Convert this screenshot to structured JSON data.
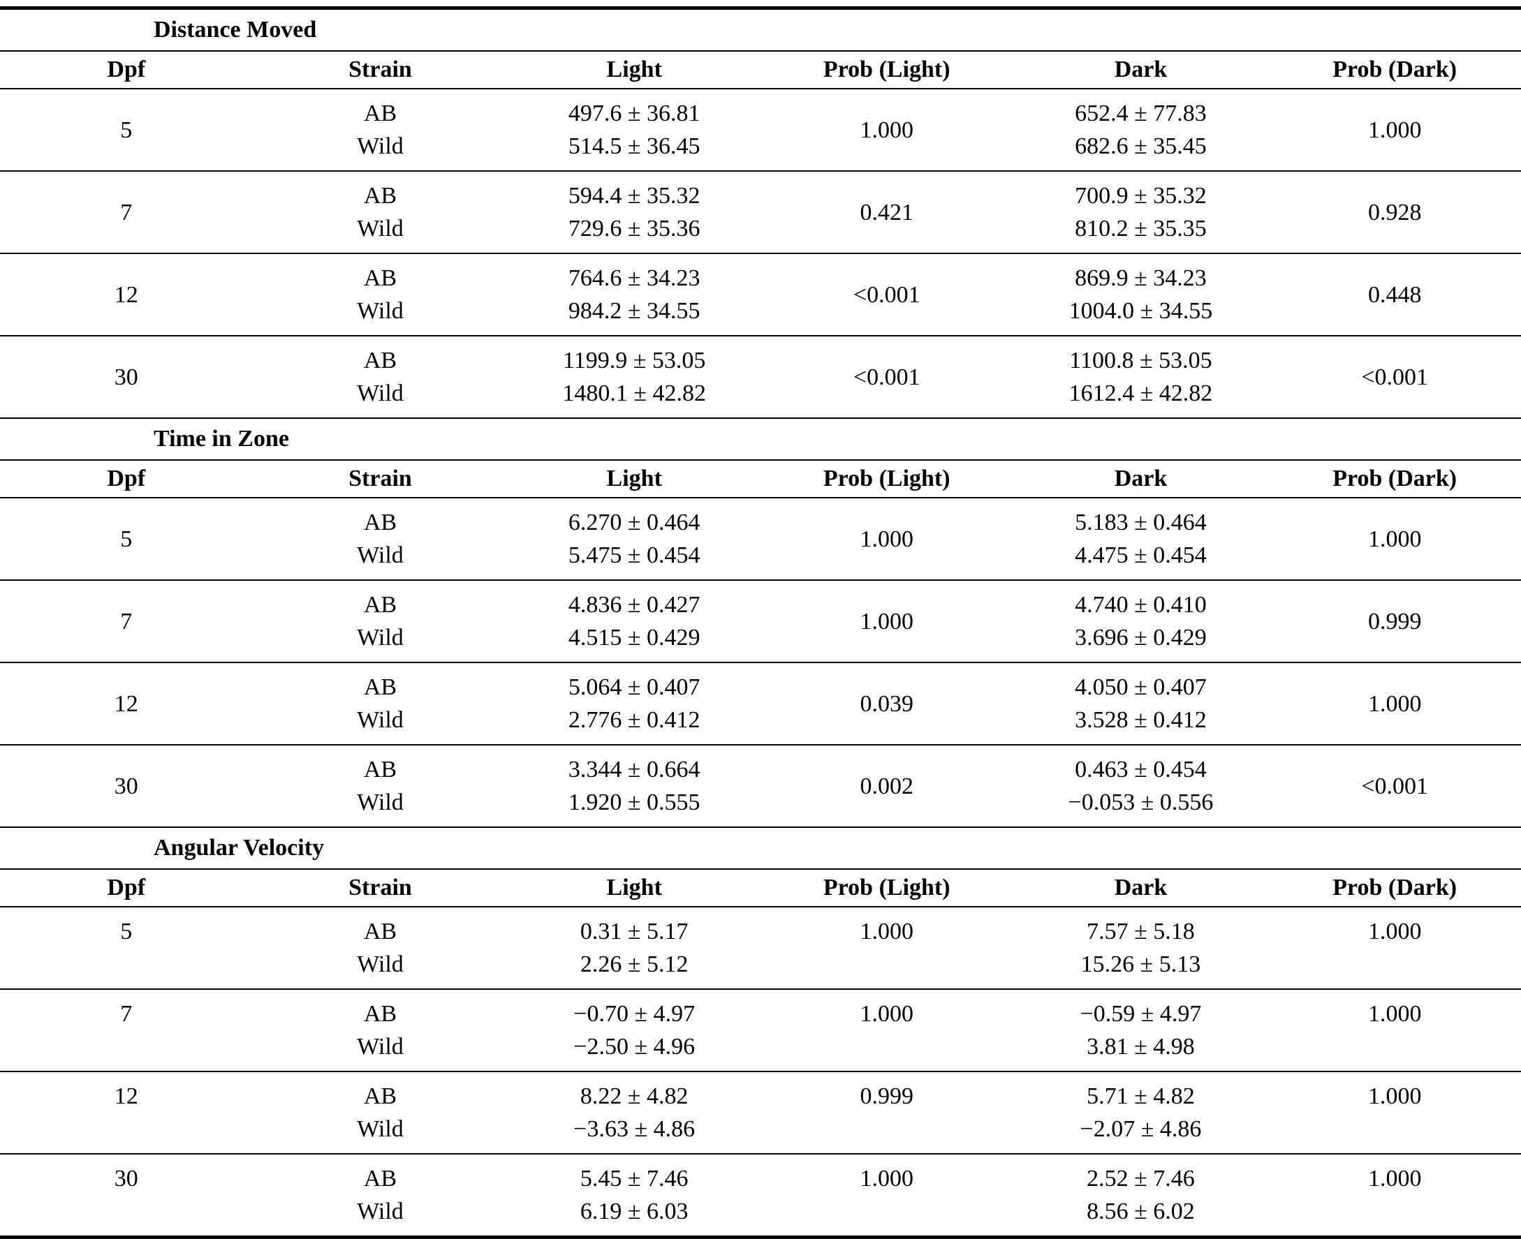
{
  "table": {
    "columns": [
      "Dpf",
      "Strain",
      "Light",
      "Prob (Light)",
      "Dark",
      "Prob (Dark)"
    ],
    "sections": [
      {
        "title": "Distance Moved",
        "rows": [
          {
            "dpf": "5",
            "strain": [
              "AB",
              "Wild"
            ],
            "light": [
              "497.6 ± 36.81",
              "514.5 ± 36.45"
            ],
            "prob_light": "1.000",
            "dark": [
              "652.4 ± 77.83",
              "682.6 ± 35.45"
            ],
            "prob_dark": "1.000"
          },
          {
            "dpf": "7",
            "strain": [
              "AB",
              "Wild"
            ],
            "light": [
              "594.4 ± 35.32",
              "729.6 ± 35.36"
            ],
            "prob_light": "0.421",
            "dark": [
              "700.9 ± 35.32",
              "810.2 ± 35.35"
            ],
            "prob_dark": "0.928"
          },
          {
            "dpf": "12",
            "strain": [
              "AB",
              "Wild"
            ],
            "light": [
              "764.6 ± 34.23",
              "984.2 ± 34.55"
            ],
            "prob_light": "<0.001",
            "dark": [
              "869.9 ± 34.23",
              "1004.0 ± 34.55"
            ],
            "prob_dark": "0.448"
          },
          {
            "dpf": "30",
            "strain": [
              "AB",
              "Wild"
            ],
            "light": [
              "1199.9 ± 53.05",
              "1480.1 ± 42.82"
            ],
            "prob_light": "<0.001",
            "dark": [
              "1100.8 ± 53.05",
              "1612.4 ± 42.82"
            ],
            "prob_dark": "<0.001"
          }
        ]
      },
      {
        "title": "Time in Zone",
        "rows": [
          {
            "dpf": "5",
            "strain": [
              "AB",
              "Wild"
            ],
            "light": [
              "6.270 ± 0.464",
              "5.475 ± 0.454"
            ],
            "prob_light": "1.000",
            "dark": [
              "5.183 ± 0.464",
              "4.475 ± 0.454"
            ],
            "prob_dark": "1.000"
          },
          {
            "dpf": "7",
            "strain": [
              "AB",
              "Wild"
            ],
            "light": [
              "4.836 ± 0.427",
              "4.515 ± 0.429"
            ],
            "prob_light": "1.000",
            "dark": [
              "4.740 ± 0.410",
              "3.696 ± 0.429"
            ],
            "prob_dark": "0.999"
          },
          {
            "dpf": "12",
            "strain": [
              "AB",
              "Wild"
            ],
            "light": [
              "5.064 ± 0.407",
              "2.776 ± 0.412"
            ],
            "prob_light": "0.039",
            "dark": [
              "4.050 ± 0.407",
              "3.528 ± 0.412"
            ],
            "prob_dark": "1.000"
          },
          {
            "dpf": "30",
            "strain": [
              "AB",
              "Wild"
            ],
            "light": [
              "3.344 ± 0.664",
              "1.920 ± 0.555"
            ],
            "prob_light": "0.002",
            "dark": [
              "0.463 ± 0.454",
              "−0.053 ± 0.556"
            ],
            "prob_dark": "<0.001"
          }
        ]
      },
      {
        "title": "Angular Velocity",
        "rows": [
          {
            "dpf": "5",
            "strain": [
              "AB",
              "Wild"
            ],
            "light": [
              "0.31 ± 5.17",
              "2.26 ± 5.12"
            ],
            "prob_light": "1.000",
            "dark": [
              "7.57 ± 5.18",
              "15.26 ± 5.13"
            ],
            "prob_dark": "1.000"
          },
          {
            "dpf": "7",
            "strain": [
              "AB",
              "Wild"
            ],
            "light": [
              "−0.70 ± 4.97",
              "−2.50 ± 4.96"
            ],
            "prob_light": "1.000",
            "dark": [
              "−0.59 ± 4.97",
              "3.81 ± 4.98"
            ],
            "prob_dark": "1.000"
          },
          {
            "dpf": "12",
            "strain": [
              "AB",
              "Wild"
            ],
            "light": [
              "8.22 ± 4.82",
              "−3.63 ± 4.86"
            ],
            "prob_light": "0.999",
            "dark": [
              "5.71 ± 4.82",
              "−2.07 ± 4.86"
            ],
            "prob_dark": "1.000"
          },
          {
            "dpf": "30",
            "strain": [
              "AB",
              "Wild"
            ],
            "light": [
              "5.45 ± 7.46",
              "6.19 ± 6.03"
            ],
            "prob_light": "1.000",
            "dark": [
              "2.52 ± 7.46",
              "8.56 ± 6.02"
            ],
            "prob_dark": "1.000"
          }
        ]
      }
    ]
  }
}
